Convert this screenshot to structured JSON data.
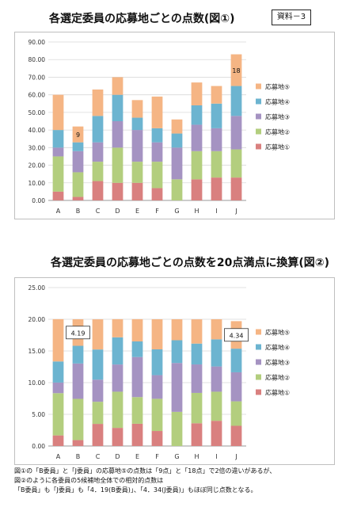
{
  "title1": "各選定委員の応募地ごとの点数(図①)",
  "title2": "各選定委員の応募地ごとの点数を20点満点に換算(図②)",
  "badge": "資料－3",
  "notes": [
    "図①の「B委員」と「J委員」の応募地⑤の点数は「9点」と「18点」で2倍の違いがあるが、",
    "図②のように各委員の5候補地全体での相対的点数は",
    "「B委員」も「J委員」も「4．19(B委員)」、「4．34(J委員)」もほぼ同じ点数となる。"
  ],
  "chart_data": [
    {
      "type": "bar",
      "stacked": true,
      "title": "各選定委員の応募地ごとの点数(図①)",
      "categories": [
        "A",
        "B",
        "C",
        "D",
        "E",
        "F",
        "G",
        "H",
        "I",
        "J"
      ],
      "ylim": [
        0,
        90
      ],
      "yticks": [
        "0.00",
        "10.00",
        "20.00",
        "30.00",
        "40.00",
        "50.00",
        "60.00",
        "70.00",
        "80.00",
        "90.00"
      ],
      "grid": true,
      "legend_position": "right",
      "series": [
        {
          "name": "応募地①",
          "color": "#d9807f",
          "values": [
            5,
            2,
            11,
            10,
            10,
            7,
            0,
            12,
            13,
            13
          ]
        },
        {
          "name": "応募地②",
          "color": "#b3ce7e",
          "values": [
            20,
            14,
            11,
            20,
            12,
            15,
            12,
            16,
            15,
            16
          ]
        },
        {
          "name": "応募地③",
          "color": "#a593c2",
          "values": [
            5,
            12,
            11,
            15,
            18,
            11,
            18,
            15,
            13,
            19
          ]
        },
        {
          "name": "応募地④",
          "color": "#6cb4d0",
          "values": [
            10,
            5,
            15,
            15,
            7,
            8,
            8,
            11,
            14,
            17
          ]
        },
        {
          "name": "応募地⑤",
          "color": "#f5b584",
          "values": [
            20,
            9,
            15,
            10,
            10,
            18,
            8,
            13,
            10,
            18
          ]
        }
      ],
      "annotations": [
        {
          "category": "B",
          "series": "応募地⑤",
          "text": "9"
        },
        {
          "category": "J",
          "series": "応募地⑤",
          "text": "18"
        }
      ]
    },
    {
      "type": "bar",
      "stacked": true,
      "title": "各選定委員の応募地ごとの点数を20点満点に換算(図②)",
      "categories": [
        "A",
        "B",
        "C",
        "D",
        "E",
        "F",
        "G",
        "H",
        "I",
        "J"
      ],
      "ylim": [
        0,
        25
      ],
      "yticks": [
        "0.00",
        "5.00",
        "10.00",
        "15.00",
        "20.00",
        "25.00"
      ],
      "grid": true,
      "legend_position": "right",
      "series": [
        {
          "name": "応募地①",
          "color": "#d9807f",
          "values": [
            1.67,
            0.93,
            3.49,
            2.86,
            3.51,
            2.37,
            0,
            3.59,
            3.98,
            3.19
          ]
        },
        {
          "name": "応募地②",
          "color": "#b3ce7e",
          "values": [
            6.67,
            6.51,
            3.49,
            5.71,
            4.21,
            5.08,
            5.39,
            4.79,
            4.59,
            3.86
          ]
        },
        {
          "name": "応募地③",
          "color": "#a593c2",
          "values": [
            1.67,
            5.58,
            3.49,
            4.29,
            6.32,
            3.73,
            7.71,
            4.49,
            3.98,
            4.58
          ]
        },
        {
          "name": "応募地④",
          "color": "#6cb4d0",
          "values": [
            3.33,
            2.79,
            4.76,
            4.29,
            2.46,
            4.07,
            3.59,
            3.29,
            4.28,
            3.73
          ]
        },
        {
          "name": "応募地⑤",
          "color": "#f5b584",
          "values": [
            6.67,
            4.19,
            4.76,
            2.86,
            3.51,
            4.75,
            3.31,
            3.83,
            3.17,
            4.34
          ]
        }
      ],
      "annotations": [
        {
          "category": "B",
          "series": "応募地⑤",
          "text": "4.19",
          "boxed": true
        },
        {
          "category": "J",
          "series": "応募地⑤",
          "text": "4.34",
          "boxed": true
        }
      ]
    }
  ]
}
